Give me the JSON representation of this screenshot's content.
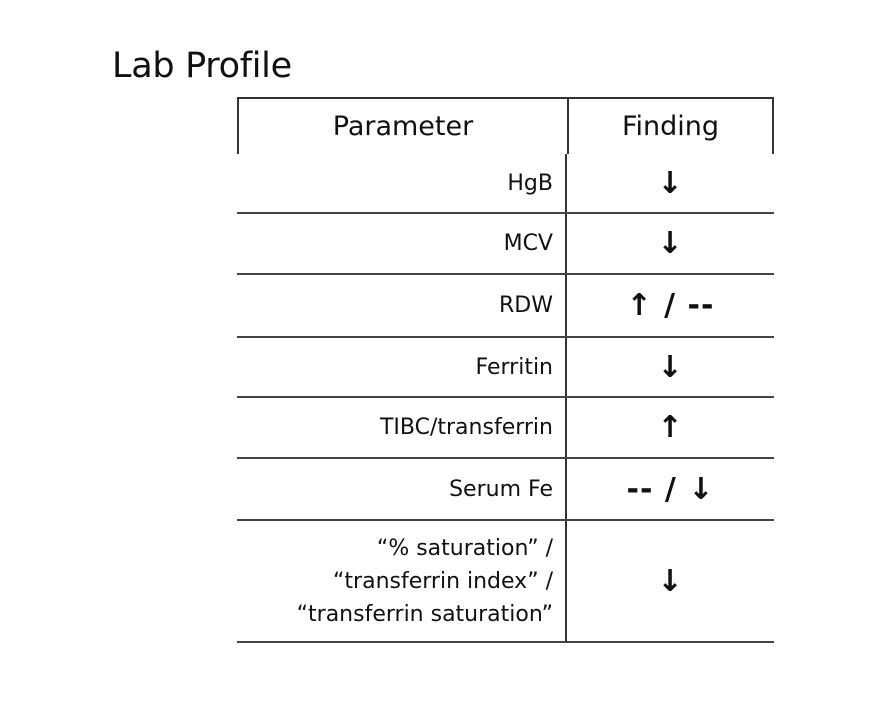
{
  "title": "Lab Profile",
  "table": {
    "headers": [
      "Parameter",
      "Finding"
    ],
    "rows": [
      {
        "parameter": "HgB",
        "finding": "↓"
      },
      {
        "parameter": "MCV",
        "finding": "↓"
      },
      {
        "parameter": "RDW",
        "finding": "↑ / --"
      },
      {
        "parameter": "Ferritin",
        "finding": "↓"
      },
      {
        "parameter": "TIBC/transferrin",
        "finding": "↑"
      },
      {
        "parameter": "Serum Fe",
        "finding": "-- / ↓"
      },
      {
        "parameter_lines": [
          "“% saturation” /",
          "“transferrin index” /",
          "“transferrin saturation”"
        ],
        "finding": "↓"
      }
    ]
  }
}
